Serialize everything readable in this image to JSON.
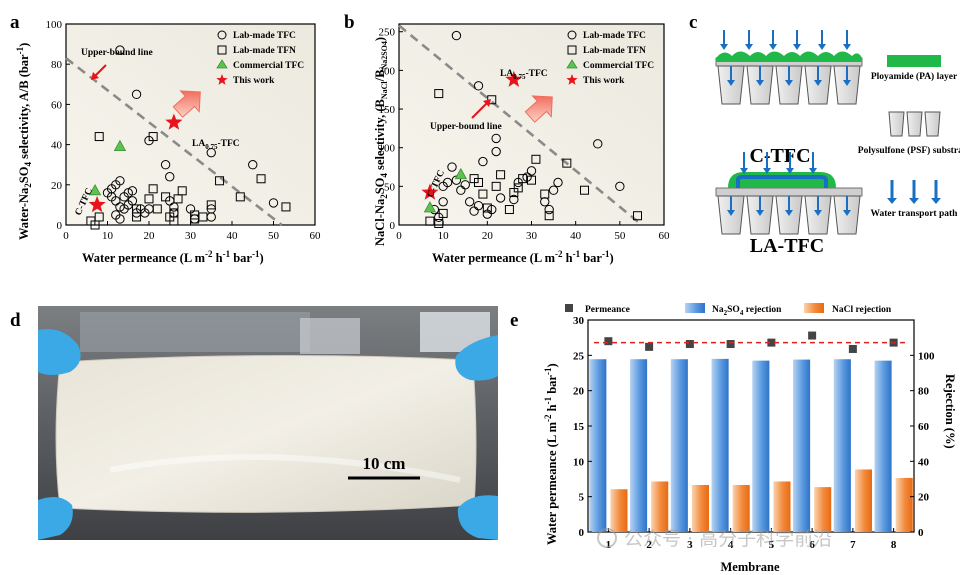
{
  "panels": {
    "a": "a",
    "b": "b",
    "c": "c",
    "d": "d",
    "e": "e"
  },
  "colors": {
    "star": "#e8141c",
    "triangle": "#5ec251",
    "dashed": "#8a8a8a",
    "pa_layer": "#1fb849",
    "water_arrow": "#1a6fc4",
    "na2so4_bar": "#3a86d6",
    "nacl_bar": "#ee7420",
    "permeance_line": "#e02020",
    "plot_bg": "#f3f2ec"
  },
  "panel_a": {
    "ylabel_pre": "Water-Na",
    "ylabel_sub1": "2",
    "ylabel_mid": "SO",
    "ylabel_sub2": "4",
    "ylabel_post": " selectivity, A/B (bar",
    "ylabel_sup": "-1",
    "ylabel_end": ")",
    "xlabel_pre": "Water permeance (L m",
    "xlabel_sup1": "-2",
    "xlabel_mid1": " h",
    "xlabel_sup2": "-1",
    "xlabel_mid2": " bar",
    "xlabel_sup3": "-1",
    "xlabel_end": ")",
    "annot_upper": "Upper-bound line",
    "annot_la_pre": "LA",
    "annot_la_sub": "0.75",
    "annot_la_post": "-TFC",
    "annot_ctfc": "C-TFC"
  },
  "panel_b": {
    "ylabel_pre": "NaCl-Na",
    "ylabel_sub1": "2",
    "ylabel_mid": "SO",
    "ylabel_sub2": "4",
    "ylabel_post": " selectivity, (B",
    "ylabel_sub3": "NaCl",
    "ylabel_slash": "/B",
    "ylabel_sub4": "Na2SO4",
    "ylabel_end": ")",
    "annot_upper": "Upper-bound line",
    "annot_la_pre": "LA",
    "annot_la_sub": "0.75",
    "annot_la_post": "-TFC",
    "annot_ctfc": "C-TFC"
  },
  "legend_ab": [
    "Lab-made TFC",
    "Lab-made TFN",
    "Commercial TFC",
    "This work"
  ],
  "panel_c": {
    "ctfc_label": "C-TFC",
    "latfc_label": "LA-TFC",
    "legend_pa": "Ployamide (PA) layer",
    "legend_psf": "Polysulfone (PSF) substrate",
    "legend_water": "Water transport path"
  },
  "panel_d": {
    "scale_label": "10 cm"
  },
  "panel_e": {
    "legend": [
      "Permeance",
      "Na2SO4 rejection",
      "NaCl rejection"
    ],
    "ylabel_left": "Water permeance (L m-2 h-1 bar-1)",
    "ylabel_right": "Rejection (%)",
    "xlabel": "Membrane"
  },
  "watermark": "公众号 · 高分子科学前沿",
  "chart_data": [
    {
      "id": "a",
      "type": "scatter",
      "xlabel": "Water permeance (L m-2 h-1 bar-1)",
      "ylabel": "Water-Na2SO4 selectivity, A/B (bar-1)",
      "xlim": [
        0,
        60
      ],
      "ylim": [
        0,
        100
      ],
      "xticks": [
        0,
        10,
        20,
        30,
        40,
        50,
        60
      ],
      "yticks": [
        0,
        20,
        40,
        60,
        80,
        100
      ],
      "series": [
        {
          "name": "Lab-made TFC",
          "marker": "circle",
          "points": [
            [
              13,
              87
            ],
            [
              17,
              65
            ],
            [
              20,
              42
            ],
            [
              10,
              16
            ],
            [
              11,
              18
            ],
            [
              12,
              20
            ],
            [
              13,
              22
            ],
            [
              11,
              14
            ],
            [
              12,
              12
            ],
            [
              13,
              9
            ],
            [
              14,
              8
            ],
            [
              15,
              10
            ],
            [
              16,
              12
            ],
            [
              17,
              6
            ],
            [
              18,
              8
            ],
            [
              19,
              6
            ],
            [
              20,
              8
            ],
            [
              14,
              14
            ],
            [
              15,
              16
            ],
            [
              16,
              17
            ],
            [
              12,
              5
            ],
            [
              13,
              3
            ],
            [
              24,
              30
            ],
            [
              25,
              24
            ],
            [
              25,
              12
            ],
            [
              26,
              9
            ],
            [
              26,
              6
            ],
            [
              30,
              8
            ],
            [
              31,
              3
            ],
            [
              35,
              8
            ],
            [
              35,
              4
            ],
            [
              35,
              36
            ],
            [
              45,
              30
            ],
            [
              50,
              11
            ]
          ]
        },
        {
          "name": "Lab-made TFN",
          "marker": "square",
          "points": [
            [
              8,
              44
            ],
            [
              21,
              44
            ],
            [
              17,
              8
            ],
            [
              17,
              4
            ],
            [
              20,
              13
            ],
            [
              21,
              18
            ],
            [
              22,
              8
            ],
            [
              24,
              14
            ],
            [
              25,
              4
            ],
            [
              26,
              6
            ],
            [
              26,
              2
            ],
            [
              27,
              13
            ],
            [
              28,
              17
            ],
            [
              31,
              3
            ],
            [
              31,
              5
            ],
            [
              33,
              4
            ],
            [
              35,
              10
            ],
            [
              37,
              22
            ],
            [
              42,
              14
            ],
            [
              47,
              23
            ],
            [
              53,
              9
            ],
            [
              6,
              2
            ],
            [
              8,
              4
            ],
            [
              7,
              0
            ]
          ]
        },
        {
          "name": "Commercial TFC",
          "marker": "triangle",
          "points": [
            [
              13,
              39
            ],
            [
              7,
              17
            ]
          ]
        },
        {
          "name": "This work",
          "marker": "star",
          "points": [
            [
              26,
              51
            ],
            [
              7.5,
              10
            ]
          ]
        }
      ],
      "upper_bound_line": [
        [
          0,
          83
        ],
        [
          52,
          0
        ]
      ]
    },
    {
      "id": "b",
      "type": "scatter",
      "xlabel": "Water permeance (L m-2 h-1 bar-1)",
      "ylabel": "NaCl-Na2SO4 selectivity, (BNaCl/BNa2SO4)",
      "xlim": [
        0,
        60
      ],
      "ylim": [
        0,
        260
      ],
      "xticks": [
        0,
        10,
        20,
        30,
        40,
        50,
        60
      ],
      "yticks": [
        0,
        50,
        100,
        150,
        200,
        250
      ],
      "series": [
        {
          "name": "Lab-made TFC",
          "marker": "circle",
          "points": [
            [
              13,
              245
            ],
            [
              18,
              180
            ],
            [
              19,
              82
            ],
            [
              22,
              95
            ],
            [
              22,
              112
            ],
            [
              12,
              75
            ],
            [
              10,
              50
            ],
            [
              11,
              55
            ],
            [
              13,
              58
            ],
            [
              14,
              45
            ],
            [
              15,
              52
            ],
            [
              16,
              30
            ],
            [
              17,
              18
            ],
            [
              18,
              25
            ],
            [
              20,
              14
            ],
            [
              21,
              20
            ],
            [
              23,
              35
            ],
            [
              26,
              33
            ],
            [
              27,
              55
            ],
            [
              29,
              62
            ],
            [
              30,
              70
            ],
            [
              33,
              30
            ],
            [
              34,
              20
            ],
            [
              35,
              45
            ],
            [
              36,
              55
            ],
            [
              45,
              105
            ],
            [
              50,
              50
            ],
            [
              8,
              20
            ],
            [
              9,
              10
            ],
            [
              10,
              30
            ]
          ]
        },
        {
          "name": "Lab-made TFN",
          "marker": "square",
          "points": [
            [
              9,
              170
            ],
            [
              21,
              162
            ],
            [
              17,
              60
            ],
            [
              18,
              55
            ],
            [
              19,
              40
            ],
            [
              20,
              22
            ],
            [
              22,
              50
            ],
            [
              23,
              65
            ],
            [
              25,
              20
            ],
            [
              26,
              42
            ],
            [
              27,
              48
            ],
            [
              28,
              60
            ],
            [
              30,
              58
            ],
            [
              31,
              85
            ],
            [
              33,
              40
            ],
            [
              34,
              12
            ],
            [
              38,
              80
            ],
            [
              42,
              45
            ],
            [
              54,
              12
            ],
            [
              7,
              5
            ],
            [
              9,
              2
            ],
            [
              10,
              15
            ]
          ]
        },
        {
          "name": "Commercial TFC",
          "marker": "triangle",
          "points": [
            [
              14,
              65
            ],
            [
              7,
              22
            ]
          ]
        },
        {
          "name": "This work",
          "marker": "star",
          "points": [
            [
              26,
              188
            ],
            [
              7,
              42
            ]
          ]
        }
      ],
      "upper_bound_line": [
        [
          0,
          258
        ],
        [
          55,
          0
        ]
      ]
    },
    {
      "id": "e",
      "type": "bar",
      "xlabel": "Membrane",
      "ylabel": "Water permeance (L m-2 h-1 bar-1)",
      "ylabel_right": "Rejection (%)",
      "categories": [
        "1",
        "2",
        "3",
        "4",
        "5",
        "6",
        "7",
        "8"
      ],
      "ylim": [
        0,
        30
      ],
      "yticks": [
        0,
        5,
        10,
        15,
        20,
        25,
        30
      ],
      "ylim_right": [
        0,
        120
      ],
      "yticks_right": [
        0,
        20,
        40,
        60,
        80,
        100
      ],
      "series": [
        {
          "name": "Permeance",
          "axis": "left",
          "marker": "square",
          "values": [
            27.0,
            26.2,
            26.6,
            26.6,
            26.8,
            27.8,
            25.9,
            26.8
          ]
        },
        {
          "name": "Na2SO4 rejection",
          "axis": "right",
          "values": [
            97.8,
            97.8,
            97.8,
            98.0,
            97.0,
            97.6,
            97.8,
            97.0
          ]
        },
        {
          "name": "NaCl rejection",
          "axis": "right",
          "values": [
            24.2,
            28.6,
            26.6,
            26.6,
            28.6,
            25.4,
            35.4,
            30.6
          ]
        }
      ],
      "mean_permeance_line": 26.8
    }
  ]
}
